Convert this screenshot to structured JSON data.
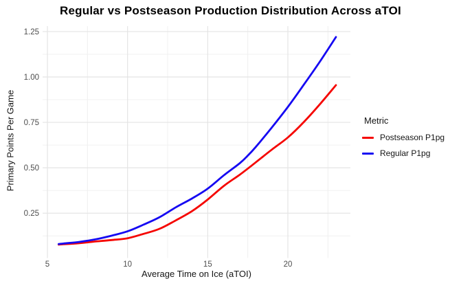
{
  "title": "Regular vs Postseason Production Distribution Across aTOI",
  "legend": {
    "title": "Metric",
    "entries": [
      {
        "label": "Postseason P1pg",
        "color": "#f50400"
      },
      {
        "label": "Regular P1pg",
        "color": "#1508f2"
      }
    ]
  },
  "chart_data": {
    "type": "line",
    "title": "Regular vs Postseason Production Distribution Across aTOI",
    "xlabel": "Average Time on Ice (aTOI)",
    "ylabel": "Primary Points Per Game",
    "x_domain": [
      4.7,
      23.9
    ],
    "y_domain": [
      0.02,
      1.28
    ],
    "x_major_ticks": [
      5,
      10,
      15,
      20
    ],
    "x_tick_labels": [
      "5",
      "10",
      "15",
      "20"
    ],
    "x_minor_ticks": [
      7.5,
      12.5,
      17.5,
      22.5
    ],
    "y_major_ticks": [
      0.25,
      0.5,
      0.75,
      1.0,
      1.25
    ],
    "y_tick_labels": [
      "0.25",
      "0.50",
      "0.75",
      "1.00",
      "1.25"
    ],
    "y_minor_ticks": [
      0.125,
      0.375,
      0.625,
      0.875,
      1.125
    ],
    "grid": true,
    "legend_position": "right",
    "legend_title": "Metric",
    "colors": {
      "major_grid": "#e4e4e4",
      "minor_grid": "#f0f0f0",
      "tick": "#d2d2d2"
    },
    "series": [
      {
        "name": "Postseason P1pg",
        "color": "#f50400",
        "points": [
          [
            5.7,
            0.077
          ],
          [
            6,
            0.079
          ],
          [
            7,
            0.085
          ],
          [
            8,
            0.094
          ],
          [
            9,
            0.102
          ],
          [
            10,
            0.112
          ],
          [
            11,
            0.136
          ],
          [
            12,
            0.164
          ],
          [
            13,
            0.21
          ],
          [
            14,
            0.26
          ],
          [
            15,
            0.325
          ],
          [
            16,
            0.4
          ],
          [
            17,
            0.462
          ],
          [
            18,
            0.53
          ],
          [
            19,
            0.6
          ],
          [
            20,
            0.667
          ],
          [
            21,
            0.752
          ],
          [
            22,
            0.85
          ],
          [
            23,
            0.955
          ]
        ]
      },
      {
        "name": "Regular P1pg",
        "color": "#1508f2",
        "points": [
          [
            5.7,
            0.08
          ],
          [
            6,
            0.083
          ],
          [
            7,
            0.092
          ],
          [
            8,
            0.106
          ],
          [
            9,
            0.126
          ],
          [
            10,
            0.15
          ],
          [
            11,
            0.187
          ],
          [
            12,
            0.228
          ],
          [
            13,
            0.282
          ],
          [
            14,
            0.33
          ],
          [
            15,
            0.385
          ],
          [
            16,
            0.458
          ],
          [
            17,
            0.525
          ],
          [
            17.5,
            0.567
          ],
          [
            18,
            0.615
          ],
          [
            19,
            0.722
          ],
          [
            20,
            0.835
          ],
          [
            21,
            0.958
          ],
          [
            22,
            1.085
          ],
          [
            23,
            1.22
          ]
        ]
      }
    ]
  }
}
